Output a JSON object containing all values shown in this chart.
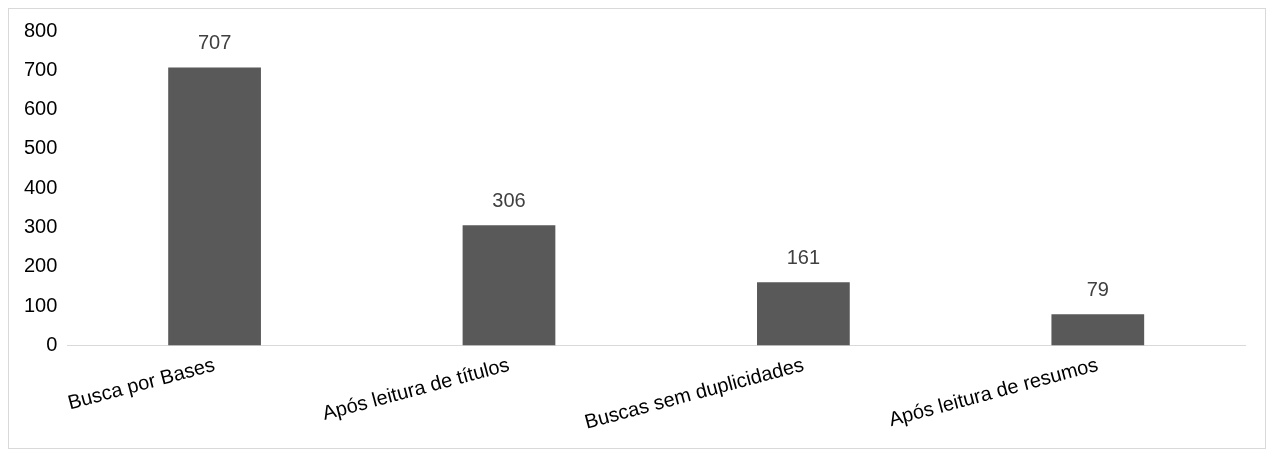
{
  "chart_data": {
    "type": "bar",
    "categories": [
      "Busca por Bases",
      "Após leitura de títulos",
      "Buscas sem duplicidades",
      "Após leitura de resumos"
    ],
    "values": [
      707,
      306,
      161,
      79
    ],
    "color": "#595959",
    "ylim": [
      0,
      800
    ],
    "yticks": [
      0,
      100,
      200,
      300,
      400,
      500,
      600,
      700,
      800
    ],
    "grid": false,
    "data_labels": true
  }
}
